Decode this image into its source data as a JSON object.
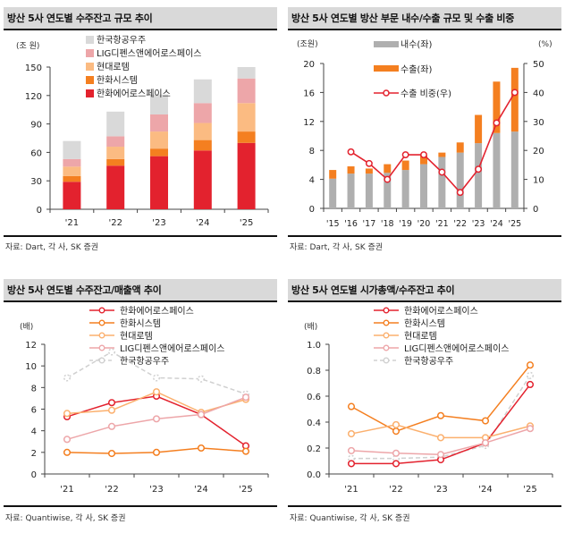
{
  "chart_data": [
    {
      "id": "backlog",
      "type": "bar",
      "stacked": true,
      "title": "방산 5사 연도별 수주잔고 규모 추이",
      "ylabel": "(조 원)",
      "ylim": [
        0,
        150
      ],
      "yticks": [
        0,
        30,
        60,
        90,
        120,
        150
      ],
      "categories": [
        "'21",
        "'22",
        "'23",
        "'24",
        "'25"
      ],
      "series": [
        {
          "name": "한화에어로스페이스",
          "color": "#e3222e",
          "values": [
            29,
            46,
            56,
            62,
            70
          ]
        },
        {
          "name": "한화시스템",
          "color": "#f47f20",
          "values": [
            6,
            7,
            8,
            11,
            12
          ]
        },
        {
          "name": "현대로템",
          "color": "#fbbb82",
          "values": [
            10,
            13,
            18,
            18,
            30
          ]
        },
        {
          "name": "LIG디펜스앤에어로스페이스",
          "color": "#eda6a9",
          "values": [
            8,
            11,
            18,
            21,
            26
          ]
        },
        {
          "name": "한국항공우주",
          "color": "#d9d9d9",
          "values": [
            19,
            26,
            21,
            25,
            12
          ]
        }
      ],
      "legend_order": [
        "한국항공우주",
        "LIG디펜스앤에어로스페이스",
        "현대로템",
        "한화시스템",
        "한화에어로스페이스"
      ],
      "legend": "top-center",
      "grid": false,
      "source": "자료: Dart, 각 사, SK 증권"
    },
    {
      "id": "domestic-export",
      "type": "bar",
      "stacked": true,
      "title": "방산 5사 연도별 방산 부문 내수/수출 규모 및 수출 비중",
      "ylabel": "(조원)",
      "ylabel_right": "(%)",
      "ylim": [
        0,
        20
      ],
      "yticks": [
        0,
        4,
        8,
        12,
        16,
        20
      ],
      "ylim_right": [
        0,
        50
      ],
      "yticks_right": [
        0,
        10,
        20,
        30,
        40,
        50
      ],
      "categories": [
        "'15",
        "'16",
        "'17",
        "'18",
        "'19",
        "'20",
        "'21",
        "'22",
        "'23",
        "'24",
        "'25"
      ],
      "series": [
        {
          "name": "내수(좌)",
          "color": "#afafaf",
          "axis": "left",
          "kind": "bar",
          "values": [
            4.1,
            4.8,
            4.8,
            4.9,
            5.3,
            6.1,
            7.1,
            7.7,
            9.0,
            10.4,
            10.6
          ]
        },
        {
          "name": "수출(좌)",
          "color": "#f47f20",
          "axis": "left",
          "kind": "bar",
          "values": [
            1.2,
            1.0,
            0.7,
            1.2,
            1.3,
            1.2,
            0.6,
            1.4,
            3.9,
            7.1,
            8.8
          ]
        },
        {
          "name": "수출 비중(우)",
          "color": "#e3222e",
          "axis": "right",
          "kind": "line",
          "values": [
            null,
            19.5,
            15.5,
            10.0,
            18.5,
            18.5,
            12.5,
            5.5,
            13.5,
            29.5,
            40.0
          ]
        }
      ],
      "legend": "top-center",
      "grid": false,
      "source": "자료: Dart, 각 사, SK 증권"
    },
    {
      "id": "backlog-to-sales",
      "type": "line",
      "title": "방산 5사 연도별 수주잔고/매출액 추이",
      "ylabel": "(배)",
      "ylim": [
        0,
        12
      ],
      "yticks": [
        0,
        2,
        4,
        6,
        8,
        10,
        12
      ],
      "ytick_format": "int",
      "categories": [
        "'21",
        "'22",
        "'23",
        "'24",
        "'25"
      ],
      "series": [
        {
          "name": "한화에어로스페이스",
          "color": "#e3222e",
          "dash": false,
          "values": [
            5.3,
            6.6,
            7.2,
            5.5,
            2.6
          ]
        },
        {
          "name": "한화시스템",
          "color": "#f47f20",
          "dash": false,
          "values": [
            2.0,
            1.9,
            2.0,
            2.4,
            2.1
          ]
        },
        {
          "name": "현대로템",
          "color": "#fbb06e",
          "dash": false,
          "values": [
            5.6,
            5.9,
            7.6,
            5.7,
            6.9
          ]
        },
        {
          "name": "LIG디펜스앤에어로스페이스",
          "color": "#eda6a9",
          "dash": false,
          "values": [
            3.2,
            4.4,
            5.1,
            5.5,
            7.1
          ]
        },
        {
          "name": "한국항공우주",
          "color": "#d0d0d0",
          "dash": true,
          "values": [
            8.9,
            11.3,
            8.9,
            8.8,
            7.4
          ]
        }
      ],
      "legend": "top-center",
      "grid": false,
      "source": "자료: Quantiwise, 각 사, SK 증권"
    },
    {
      "id": "mktcap-to-backlog",
      "type": "line",
      "title": "방산 5사 연도별 시가총액/수주잔고 추이",
      "ylabel": "(배)",
      "ylim": [
        0,
        1.0
      ],
      "yticks": [
        0.0,
        0.2,
        0.4,
        0.6,
        0.8,
        1.0
      ],
      "ytick_format": "1dp",
      "categories": [
        "'21",
        "'22",
        "'23",
        "'24",
        "'25"
      ],
      "series": [
        {
          "name": "한화에어로스페이스",
          "color": "#e3222e",
          "dash": false,
          "values": [
            0.08,
            0.08,
            0.11,
            0.24,
            0.69
          ]
        },
        {
          "name": "한화시스템",
          "color": "#f47f20",
          "dash": false,
          "values": [
            0.52,
            0.33,
            0.45,
            0.41,
            0.84
          ]
        },
        {
          "name": "현대로템",
          "color": "#fbb06e",
          "dash": false,
          "values": [
            0.31,
            0.38,
            0.28,
            0.28,
            0.37
          ]
        },
        {
          "name": "LIG디펜스앤에어로스페이스",
          "color": "#eda6a9",
          "dash": false,
          "values": [
            0.18,
            0.16,
            0.15,
            0.24,
            0.35
          ]
        },
        {
          "name": "한국항공우주",
          "color": "#d0d0d0",
          "dash": true,
          "values": [
            0.12,
            0.12,
            0.13,
            0.22,
            0.76
          ]
        }
      ],
      "legend": "top-center",
      "grid": false,
      "source": "자료: Quantiwise, 각 사, SK 증권"
    }
  ]
}
